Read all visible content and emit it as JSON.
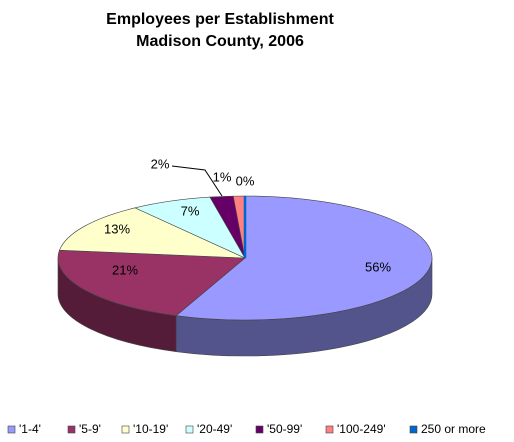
{
  "chart_data": {
    "type": "pie",
    "title": "Employees per Establishment",
    "subtitle": "Madison County, 2006",
    "categories": [
      "'1-4'",
      "'5-9'",
      "'10-19'",
      "'20-49'",
      "'50-99'",
      "'100-249'",
      "250 or more"
    ],
    "values": [
      56,
      21,
      13,
      7,
      2,
      1,
      0
    ],
    "value_labels": [
      "56%",
      "21%",
      "13%",
      "7%",
      "2%",
      "1%",
      "0%"
    ],
    "colors": [
      "#9999ff",
      "#993366",
      "#ffffcc",
      "#ccffff",
      "#660066",
      "#ff8080",
      "#0066cc"
    ],
    "legend": "bottom"
  }
}
